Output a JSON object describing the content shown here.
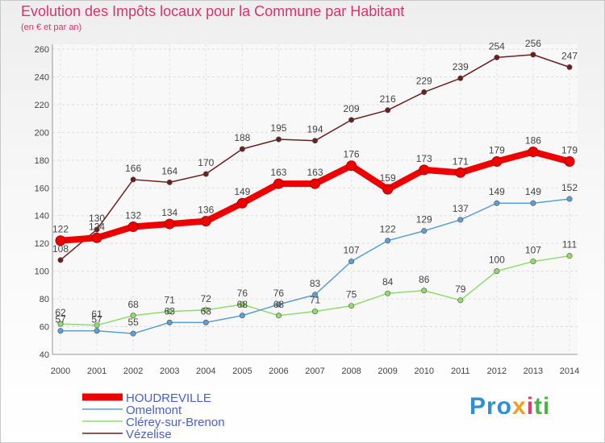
{
  "title": "Evolution des Impôts locaux pour la Commune par Habitant",
  "subtitle": "(en € et par an)",
  "logo": [
    "Pro",
    "x",
    "i",
    "ti"
  ],
  "chart_data": {
    "type": "line",
    "x": [
      "2000",
      "2001",
      "2002",
      "2003",
      "2004",
      "2005",
      "2006",
      "2007",
      "2008",
      "2009",
      "2010",
      "2011",
      "2012",
      "2013",
      "2014"
    ],
    "ylim": [
      40,
      260
    ],
    "yticks": [
      40,
      60,
      80,
      100,
      120,
      140,
      160,
      180,
      200,
      220,
      240,
      260
    ],
    "grid": true,
    "legend_position": "bottom-left",
    "series": [
      {
        "name": "Vézelise",
        "color": "#6b1f1f",
        "values": [
          108,
          130,
          166,
          164,
          170,
          188,
          195,
          194,
          209,
          216,
          229,
          239,
          254,
          256,
          247
        ]
      },
      {
        "name": "Clérey-sur-Brenon",
        "color": "#8fdc6b",
        "values": [
          62,
          61,
          68,
          71,
          72,
          76,
          68,
          71,
          75,
          84,
          86,
          79,
          100,
          107,
          111
        ]
      },
      {
        "name": "Omelmont",
        "color": "#5a9fd6",
        "values": [
          57,
          57,
          55,
          63,
          63,
          68,
          76,
          83,
          107,
          122,
          129,
          137,
          149,
          149,
          152
        ]
      },
      {
        "name": "HOUDREVILLE",
        "color": "#ee0000",
        "values": [
          122,
          124,
          132,
          134,
          136,
          149,
          163,
          163,
          176,
          159,
          173,
          171,
          179,
          186,
          179
        ]
      }
    ],
    "legend_order": [
      "HOUDREVILLE",
      "Omelmont",
      "Clérey-sur-Brenon",
      "Vézelise"
    ]
  }
}
